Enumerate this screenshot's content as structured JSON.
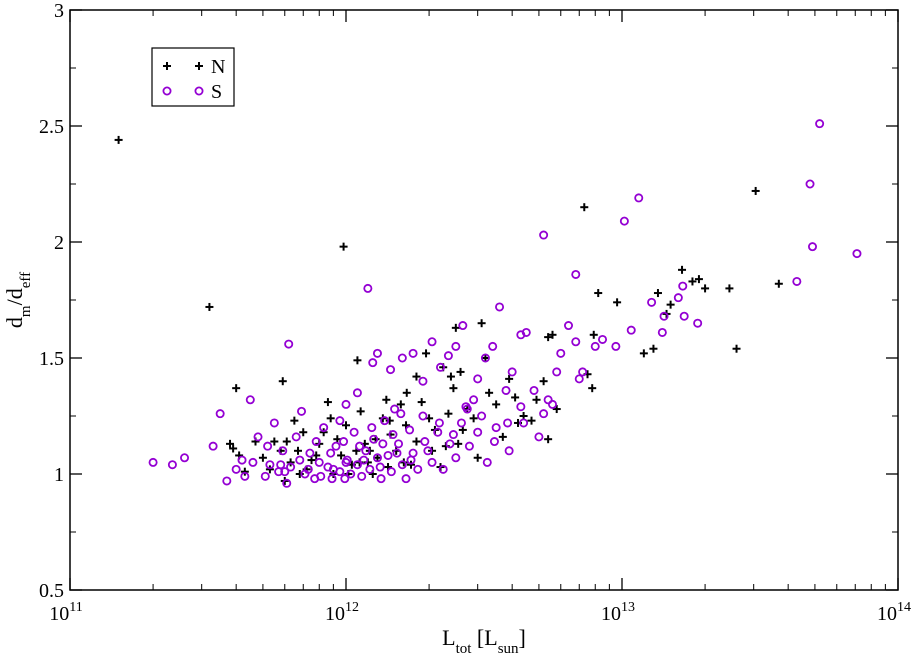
{
  "chart_data": {
    "type": "scatter",
    "xscale": "log",
    "xlim": [
      100000000000.0,
      100000000000000.0
    ],
    "ylim": [
      0.5,
      3
    ],
    "xlabel": {
      "main": "L",
      "sub": "tot",
      "rest_open": " [L",
      "rest_sub": "sun",
      "rest_close": "]"
    },
    "ylabel": {
      "a": "d",
      "a_sub": "m",
      "slash": "/d",
      "b_sub": "eff"
    },
    "x_ticks": [
      {
        "value": 100000000000.0,
        "base": "10",
        "exp": "11"
      },
      {
        "value": 1000000000000.0,
        "base": "10",
        "exp": "12"
      },
      {
        "value": 10000000000000.0,
        "base": "10",
        "exp": "13"
      },
      {
        "value": 100000000000000.0,
        "base": "10",
        "exp": "14"
      }
    ],
    "y_ticks": [
      {
        "value": 0.5,
        "label": "0.5"
      },
      {
        "value": 1,
        "label": "1"
      },
      {
        "value": 1.5,
        "label": "1.5"
      },
      {
        "value": 2,
        "label": "2"
      },
      {
        "value": 2.5,
        "label": "2.5"
      },
      {
        "value": 3,
        "label": "3"
      }
    ],
    "legend_position": "top-left",
    "grid": false,
    "series": [
      {
        "name": "N",
        "marker": "plus",
        "color": "#000000",
        "points": [
          [
            150000000000.0,
            2.44
          ],
          [
            320000000000.0,
            1.72
          ],
          [
            980000000000.0,
            1.98
          ],
          [
            7300000000000.0,
            2.15
          ],
          [
            30500000000000.0,
            2.22
          ],
          [
            16500000000000.0,
            1.88
          ],
          [
            18000000000000.0,
            1.83
          ],
          [
            19000000000000.0,
            1.84
          ],
          [
            20000000000000.0,
            1.8
          ],
          [
            24500000000000.0,
            1.8
          ],
          [
            37000000000000.0,
            1.82
          ],
          [
            26000000000000.0,
            1.54
          ],
          [
            13500000000000.0,
            1.78
          ],
          [
            15000000000000.0,
            1.73
          ],
          [
            14500000000000.0,
            1.69
          ],
          [
            13000000000000.0,
            1.54
          ],
          [
            12000000000000.0,
            1.52
          ],
          [
            9600000000000.0,
            1.74
          ],
          [
            8200000000000.0,
            1.78
          ],
          [
            7900000000000.0,
            1.6
          ],
          [
            7500000000000.0,
            1.43
          ],
          [
            7800000000000.0,
            1.37
          ],
          [
            5600000000000.0,
            1.6
          ],
          [
            5400000000000.0,
            1.59
          ],
          [
            5800000000000.0,
            1.28
          ],
          [
            5400000000000.0,
            1.15
          ],
          [
            5200000000000.0,
            1.4
          ],
          [
            4900000000000.0,
            1.32
          ],
          [
            4700000000000.0,
            1.23
          ],
          [
            4400000000000.0,
            1.25
          ],
          [
            4200000000000.0,
            1.22
          ],
          [
            3100000000000.0,
            1.65
          ],
          [
            3200000000000.0,
            1.5
          ],
          [
            2500000000000.0,
            1.63
          ],
          [
            2600000000000.0,
            1.44
          ],
          [
            2400000000000.0,
            1.42
          ],
          [
            1100000000000.0,
            1.49
          ],
          [
            590000000000.0,
            1.4
          ],
          [
            400000000000.0,
            1.37
          ],
          [
            380000000000.0,
            1.13
          ],
          [
            390000000000.0,
            1.11
          ],
          [
            430000000000.0,
            1.01
          ],
          [
            410000000000.0,
            1.08
          ],
          [
            500000000000.0,
            1.07
          ],
          [
            550000000000.0,
            1.14
          ],
          [
            580000000000.0,
            1.1
          ],
          [
            600000000000.0,
            0.97
          ],
          [
            630000000000.0,
            1.05
          ],
          [
            670000000000.0,
            1.1
          ],
          [
            720000000000.0,
            1.02
          ],
          [
            780000000000.0,
            1.08
          ],
          [
            830000000000.0,
            1.18
          ],
          [
            860000000000.0,
            1.31
          ],
          [
            880000000000.0,
            1.24
          ],
          [
            930000000000.0,
            1.15
          ],
          [
            960000000000.0,
            1.08
          ],
          [
            1000000000000.0,
            1.21
          ],
          [
            1050000000000.0,
            1.04
          ],
          [
            1090000000000.0,
            1.1
          ],
          [
            1130000000000.0,
            1.27
          ],
          [
            1170000000000.0,
            1.13
          ],
          [
            1200000000000.0,
            1.05
          ],
          [
            1250000000000.0,
            1.0
          ],
          [
            1300000000000.0,
            1.07
          ],
          [
            1360000000000.0,
            1.24
          ],
          [
            1400000000000.0,
            1.32
          ],
          [
            1450000000000.0,
            1.17
          ],
          [
            1520000000000.0,
            1.1
          ],
          [
            1580000000000.0,
            1.3
          ],
          [
            1650000000000.0,
            1.21
          ],
          [
            1720000000000.0,
            1.04
          ],
          [
            1800000000000.0,
            1.14
          ],
          [
            1880000000000.0,
            1.31
          ],
          [
            1950000000000.0,
            1.52
          ],
          [
            2000000000000.0,
            1.24
          ],
          [
            2100000000000.0,
            1.19
          ],
          [
            2200000000000.0,
            1.03
          ],
          [
            2300000000000.0,
            1.12
          ],
          [
            2350000000000.0,
            1.26
          ],
          [
            2450000000000.0,
            1.37
          ],
          [
            2550000000000.0,
            1.13
          ],
          [
            2650000000000.0,
            1.19
          ],
          [
            2750000000000.0,
            1.28
          ],
          [
            2900000000000.0,
            1.24
          ],
          [
            3000000000000.0,
            1.07
          ],
          [
            3300000000000.0,
            1.35
          ],
          [
            3500000000000.0,
            1.3
          ],
          [
            3700000000000.0,
            1.16
          ],
          [
            3900000000000.0,
            1.41
          ],
          [
            4100000000000.0,
            1.33
          ],
          [
            1800000000000.0,
            1.42
          ],
          [
            1620000000000.0,
            1.05
          ],
          [
            1420000000000.0,
            1.03
          ],
          [
            1220000000000.0,
            1.1
          ],
          [
            1020000000000.0,
            1.0
          ],
          [
            800000000000.0,
            1.13
          ],
          [
            700000000000.0,
            1.18
          ],
          [
            650000000000.0,
            1.23
          ],
          [
            530000000000.0,
            1.02
          ],
          [
            470000000000.0,
            1.14
          ],
          [
            2250000000000.0,
            1.46
          ],
          [
            2050000000000.0,
            1.1
          ],
          [
            1660000000000.0,
            1.35
          ],
          [
            1440000000000.0,
            1.23
          ],
          [
            1280000000000.0,
            1.15
          ],
          [
            1120000000000.0,
            1.05
          ],
          [
            900000000000.0,
            1.0
          ],
          [
            750000000000.0,
            1.06
          ],
          [
            680000000000.0,
            1.0
          ],
          [
            610000000000.0,
            1.14
          ]
        ]
      },
      {
        "name": "S",
        "marker": "circle",
        "color": "#9400d3",
        "points": [
          [
            52000000000000.0,
            2.51
          ],
          [
            48000000000000.0,
            2.25
          ],
          [
            49000000000000.0,
            1.98
          ],
          [
            71000000000000.0,
            1.95
          ],
          [
            43000000000000.0,
            1.83
          ],
          [
            11500000000000.0,
            2.19
          ],
          [
            10200000000000.0,
            2.09
          ],
          [
            5200000000000.0,
            2.03
          ],
          [
            1200000000000.0,
            1.8
          ],
          [
            6800000000000.0,
            1.86
          ],
          [
            620000000000.0,
            1.56
          ],
          [
            16600000000000.0,
            1.81
          ],
          [
            16000000000000.0,
            1.76
          ],
          [
            18800000000000.0,
            1.65
          ],
          [
            16800000000000.0,
            1.68
          ],
          [
            14200000000000.0,
            1.68
          ],
          [
            14000000000000.0,
            1.61
          ],
          [
            12800000000000.0,
            1.74
          ],
          [
            10800000000000.0,
            1.62
          ],
          [
            9500000000000.0,
            1.55
          ],
          [
            8500000000000.0,
            1.58
          ],
          [
            8000000000000.0,
            1.55
          ],
          [
            7200000000000.0,
            1.44
          ],
          [
            7000000000000.0,
            1.41
          ],
          [
            6800000000000.0,
            1.57
          ],
          [
            6400000000000.0,
            1.64
          ],
          [
            6000000000000.0,
            1.52
          ],
          [
            5800000000000.0,
            1.44
          ],
          [
            5400000000000.0,
            1.32
          ],
          [
            5200000000000.0,
            1.26
          ],
          [
            4800000000000.0,
            1.36
          ],
          [
            4500000000000.0,
            1.61
          ],
          [
            4300000000000.0,
            1.6
          ],
          [
            4000000000000.0,
            1.44
          ],
          [
            3800000000000.0,
            1.36
          ],
          [
            3600000000000.0,
            1.72
          ],
          [
            3400000000000.0,
            1.55
          ],
          [
            3200000000000.0,
            1.5
          ],
          [
            3000000000000.0,
            1.41
          ],
          [
            2900000000000.0,
            1.32
          ],
          [
            2750000000000.0,
            1.28
          ],
          [
            2650000000000.0,
            1.64
          ],
          [
            2500000000000.0,
            1.55
          ],
          [
            2350000000000.0,
            1.51
          ],
          [
            2200000000000.0,
            1.46
          ],
          [
            2050000000000.0,
            1.57
          ],
          [
            1900000000000.0,
            1.4
          ],
          [
            1750000000000.0,
            1.52
          ],
          [
            1600000000000.0,
            1.5
          ],
          [
            1450000000000.0,
            1.45
          ],
          [
            1300000000000.0,
            1.52
          ],
          [
            1250000000000.0,
            1.48
          ],
          [
            1100000000000.0,
            1.35
          ],
          [
            1000000000000.0,
            1.3
          ],
          [
            950000000000.0,
            1.23
          ],
          [
            200000000000.0,
            1.05
          ],
          [
            235000000000.0,
            1.04
          ],
          [
            260000000000.0,
            1.07
          ],
          [
            330000000000.0,
            1.12
          ],
          [
            350000000000.0,
            1.26
          ],
          [
            370000000000.0,
            0.97
          ],
          [
            400000000000.0,
            1.02
          ],
          [
            420000000000.0,
            1.06
          ],
          [
            450000000000.0,
            1.32
          ],
          [
            480000000000.0,
            1.16
          ],
          [
            510000000000.0,
            0.99
          ],
          [
            530000000000.0,
            1.04
          ],
          [
            550000000000.0,
            1.22
          ],
          [
            570000000000.0,
            1.01
          ],
          [
            590000000000.0,
            1.1
          ],
          [
            610000000000.0,
            0.96
          ],
          [
            630000000000.0,
            1.03
          ],
          [
            660000000000.0,
            1.16
          ],
          [
            690000000000.0,
            1.27
          ],
          [
            710000000000.0,
            1.0
          ],
          [
            740000000000.0,
            1.09
          ],
          [
            770000000000.0,
            0.98
          ],
          [
            800000000000.0,
            1.05
          ],
          [
            830000000000.0,
            1.2
          ],
          [
            860000000000.0,
            1.03
          ],
          [
            890000000000.0,
            0.98
          ],
          [
            920000000000.0,
            1.12
          ],
          [
            950000000000.0,
            1.01
          ],
          [
            980000000000.0,
            1.14
          ],
          [
            1010000000000.0,
            1.06
          ],
          [
            1040000000000.0,
            1.0
          ],
          [
            1070000000000.0,
            1.18
          ],
          [
            1100000000000.0,
            1.04
          ],
          [
            1140000000000.0,
            0.99
          ],
          [
            1180000000000.0,
            1.1
          ],
          [
            1220000000000.0,
            1.02
          ],
          [
            1260000000000.0,
            1.15
          ],
          [
            1300000000000.0,
            1.07
          ],
          [
            1340000000000.0,
            0.98
          ],
          [
            1380000000000.0,
            1.23
          ],
          [
            1420000000000.0,
            1.08
          ],
          [
            1460000000000.0,
            1.01
          ],
          [
            1500000000000.0,
            1.28
          ],
          [
            1550000000000.0,
            1.13
          ],
          [
            1600000000000.0,
            1.04
          ],
          [
            1650000000000.0,
            0.98
          ],
          [
            1700000000000.0,
            1.19
          ],
          [
            1750000000000.0,
            1.09
          ],
          [
            1820000000000.0,
            1.02
          ],
          [
            1900000000000.0,
            1.25
          ],
          [
            1980000000000.0,
            1.1
          ],
          [
            2050000000000.0,
            1.05
          ],
          [
            2150000000000.0,
            1.18
          ],
          [
            2250000000000.0,
            1.02
          ],
          [
            2380000000000.0,
            1.13
          ],
          [
            2500000000000.0,
            1.07
          ],
          [
            2620000000000.0,
            1.22
          ],
          [
            2800000000000.0,
            1.12
          ],
          [
            3000000000000.0,
            1.18
          ],
          [
            3250000000000.0,
            1.05
          ],
          [
            3500000000000.0,
            1.2
          ],
          [
            3900000000000.0,
            1.1
          ],
          [
            4400000000000.0,
            1.22
          ],
          [
            5000000000000.0,
            1.16
          ],
          [
            5600000000000.0,
            1.3
          ],
          [
            1580000000000.0,
            1.26
          ],
          [
            1480000000000.0,
            1.17
          ],
          [
            1360000000000.0,
            1.13
          ],
          [
            1240000000000.0,
            1.2
          ],
          [
            1120000000000.0,
            1.12
          ],
          [
            1000000000000.0,
            1.05
          ],
          [
            880000000000.0,
            1.09
          ],
          [
            780000000000.0,
            1.14
          ],
          [
            680000000000.0,
            1.06
          ],
          [
            600000000000.0,
            1.01
          ],
          [
            520000000000.0,
            1.12
          ],
          [
            460000000000.0,
            1.05
          ],
          [
            430000000000.0,
            0.99
          ],
          [
            580000000000.0,
            1.04
          ],
          [
            730000000000.0,
            1.02
          ],
          [
            810000000000.0,
            0.99
          ],
          [
            900000000000.0,
            1.02
          ],
          [
            990000000000.0,
            0.98
          ],
          [
            1160000000000.0,
            1.06
          ],
          [
            1330000000000.0,
            1.03
          ],
          [
            1530000000000.0,
            1.09
          ],
          [
            1720000000000.0,
            1.06
          ],
          [
            1930000000000.0,
            1.14
          ],
          [
            2180000000000.0,
            1.22
          ],
          [
            2450000000000.0,
            1.17
          ],
          [
            2720000000000.0,
            1.29
          ],
          [
            3100000000000.0,
            1.25
          ],
          [
            3450000000000.0,
            1.14
          ],
          [
            3850000000000.0,
            1.22
          ],
          [
            4300000000000.0,
            1.29
          ]
        ]
      }
    ]
  }
}
